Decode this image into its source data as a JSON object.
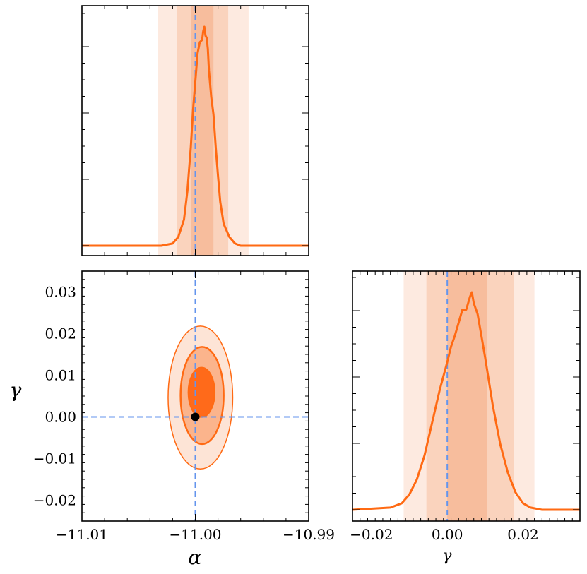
{
  "colors": {
    "curve": "#ff6a13",
    "band_light": "#fde6da",
    "band_mid": "#f9cfb6",
    "band_dark": "#f6b998",
    "contour_light": "#fde4d6",
    "contour_mid": "#fbb48c",
    "contour_dark": "#ff6a1a",
    "truth_line": "#6495ed",
    "truth_point": "#000000"
  },
  "chart_data": [
    {
      "type": "line",
      "panel": "alpha-marginal",
      "x": [
        -11.01,
        -11.003,
        -11.002,
        -11.0015,
        -11.001,
        -11.0007,
        -11.0004,
        -11.0002,
        -11.0,
        -10.9998,
        -10.9996,
        -10.9994,
        -10.9993,
        -10.9992,
        -10.9991,
        -10.999,
        -10.9989,
        -10.9988,
        -10.9986,
        -10.9984,
        -10.9982,
        -10.998,
        -10.9978,
        -10.9975,
        -10.997,
        -10.9965,
        -10.996,
        -10.99
      ],
      "y": [
        0.0,
        0.0,
        0.01,
        0.04,
        0.12,
        0.25,
        0.45,
        0.62,
        0.75,
        0.88,
        0.93,
        0.94,
        0.98,
        1.0,
        0.96,
        0.95,
        0.9,
        0.8,
        0.68,
        0.6,
        0.45,
        0.32,
        0.2,
        0.1,
        0.04,
        0.01,
        0.0,
        0.0
      ],
      "truth": -11.0,
      "bands": [
        {
          "level": "3sigma",
          "range": [
            -11.0033,
            -10.9953
          ]
        },
        {
          "level": "2sigma",
          "range": [
            -11.0016,
            -10.9971
          ]
        },
        {
          "level": "1sigma",
          "range": [
            -11.0004,
            -10.9984
          ]
        }
      ],
      "xlim": [
        -11.01,
        -10.99
      ]
    },
    {
      "type": "contour",
      "panel": "alpha-gamma-joint",
      "center": [
        -10.9995,
        0.006
      ],
      "truth": [
        -11.0,
        0.0
      ],
      "contours": [
        {
          "level": "1sigma",
          "x_range": [
            -11.0006,
            -10.9983
          ],
          "y_range": [
            -0.0,
            0.0118
          ]
        },
        {
          "level": "2sigma",
          "x_range": [
            -11.0013,
            -10.9975
          ],
          "y_range": [
            -0.0065,
            0.0168
          ]
        },
        {
          "level": "3sigma",
          "x_range": [
            -11.0024,
            -10.9967
          ],
          "y_range": [
            -0.0125,
            0.0218
          ]
        }
      ],
      "xlim": [
        -11.01,
        -10.99
      ],
      "ylim": [
        -0.025,
        0.035
      ],
      "x_ticks": [
        "−11.01",
        "−11.00",
        "−10.99"
      ],
      "x_tick_values": [
        -11.01,
        -11.0,
        -10.99
      ],
      "y_ticks": [
        "0.03",
        "0.02",
        "0.01",
        "0.00",
        "−0.01",
        "−0.02"
      ],
      "y_tick_values": [
        0.03,
        0.02,
        0.01,
        0.0,
        -0.01,
        -0.02
      ],
      "xlabel": "α",
      "ylabel": "γ"
    },
    {
      "type": "line",
      "panel": "gamma-marginal",
      "x": [
        -0.025,
        -0.015,
        -0.012,
        -0.01,
        -0.008,
        -0.006,
        -0.004,
        -0.002,
        0.0,
        0.001,
        0.002,
        0.003,
        0.004,
        0.005,
        0.0055,
        0.006,
        0.0065,
        0.007,
        0.008,
        0.009,
        0.01,
        0.012,
        0.014,
        0.016,
        0.018,
        0.02,
        0.022,
        0.025,
        0.035
      ],
      "y": [
        0.0,
        0.01,
        0.03,
        0.07,
        0.14,
        0.25,
        0.4,
        0.55,
        0.68,
        0.75,
        0.8,
        0.86,
        0.92,
        0.92,
        0.95,
        0.98,
        1.0,
        0.95,
        0.9,
        0.8,
        0.7,
        0.48,
        0.3,
        0.17,
        0.08,
        0.03,
        0.01,
        0.0,
        0.0
      ],
      "truth": 0.0,
      "bands": [
        {
          "level": "3sigma",
          "range": [
            -0.0115,
            0.023
          ]
        },
        {
          "level": "2sigma",
          "range": [
            -0.0055,
            0.0175
          ]
        },
        {
          "level": "1sigma",
          "range": [
            0.0,
            0.0105
          ]
        }
      ],
      "xlim": [
        -0.025,
        0.035
      ],
      "x_ticks": [
        "−0.02",
        "0.00",
        "0.02"
      ],
      "x_tick_values": [
        -0.02,
        0.0,
        0.02
      ],
      "xlabel": "γ"
    }
  ]
}
